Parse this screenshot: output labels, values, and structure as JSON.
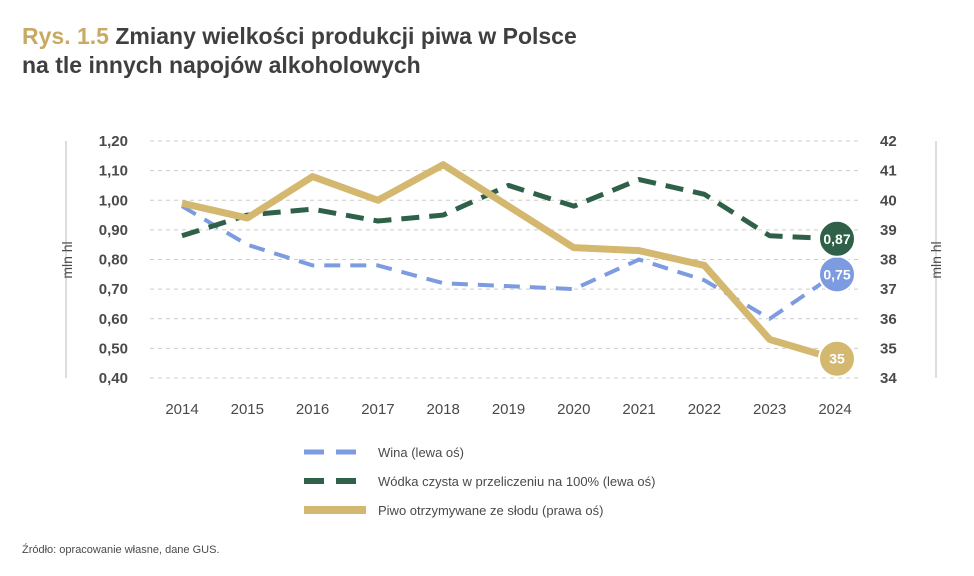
{
  "title_prefix": "Rys. 1.5",
  "title_line1": "Zmiany wielkości produkcji piwa w Polsce",
  "title_line2": "na tle innych napojów alkoholowych",
  "source": "Źródło: opracowanie własne, dane GUS.",
  "colors": {
    "wina": "#7d9be0",
    "wodka": "#2f6148",
    "piwo": "#d4b870",
    "grid": "#cccccc"
  },
  "chart_data": {
    "type": "line",
    "categories": [
      "2014",
      "2015",
      "2016",
      "2017",
      "2018",
      "2019",
      "2020",
      "2021",
      "2022",
      "2023",
      "2024"
    ],
    "ylabel_left": "mln hl",
    "ylabel_right": "mln hl",
    "ylim_left": [
      0.4,
      1.2
    ],
    "ylim_right": [
      34,
      42
    ],
    "yticks_left": [
      "0,40",
      "0,50",
      "0,60",
      "0,70",
      "0,80",
      "0,90",
      "1,00",
      "1,10",
      "1,20"
    ],
    "yticks_right": [
      "34",
      "35",
      "36",
      "37",
      "38",
      "39",
      "40",
      "41",
      "42"
    ],
    "grid": true,
    "legend_position": "bottom",
    "series": [
      {
        "name": "Wina (lewa oś)",
        "axis": "left",
        "style": "dashed",
        "values": [
          0.98,
          0.85,
          0.78,
          0.78,
          0.72,
          0.71,
          0.7,
          0.8,
          0.73,
          0.6,
          0.75
        ],
        "end_label": "0,75"
      },
      {
        "name": "Wódka czysta w przeliczeniu na 100% (lewa oś)",
        "axis": "left",
        "style": "dashed",
        "values": [
          0.88,
          0.95,
          0.97,
          0.93,
          0.95,
          1.05,
          0.98,
          1.07,
          1.02,
          0.88,
          0.87
        ],
        "end_label": "0,87"
      },
      {
        "name": "Piwo otrzymywane ze słodu (prawa oś)",
        "axis": "right",
        "style": "solid",
        "values": [
          39.9,
          39.4,
          40.8,
          40.0,
          41.2,
          39.8,
          38.4,
          38.3,
          37.8,
          35.3,
          34.65
        ],
        "end_label": "35"
      }
    ]
  }
}
